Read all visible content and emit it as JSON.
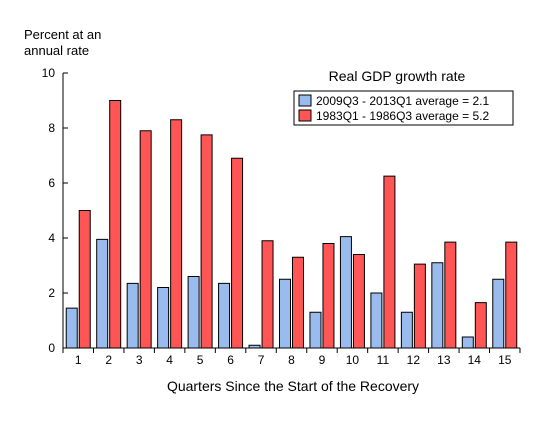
{
  "chart_data": {
    "type": "bar",
    "title": "Real GDP growth rate",
    "ylabel_lines": [
      "Percent at an",
      "annual rate"
    ],
    "xlabel": "Quarters Since the Start of the Recovery",
    "categories": [
      "1",
      "2",
      "3",
      "4",
      "5",
      "6",
      "7",
      "8",
      "9",
      "10",
      "11",
      "12",
      "13",
      "14",
      "15"
    ],
    "ylim": [
      0,
      10
    ],
    "yticks": [
      "0",
      "2",
      "4",
      "6",
      "8",
      "10"
    ],
    "grid": false,
    "legend_position": "top-right",
    "series": [
      {
        "name": "2009Q3 - 2013Q1",
        "legend_label": "2009Q3 - 2013Q1  average =  2.1",
        "color": "#99bbee",
        "values": [
          1.45,
          3.95,
          2.35,
          2.2,
          2.6,
          2.35,
          0.1,
          2.5,
          1.3,
          4.05,
          2.0,
          1.3,
          3.1,
          0.4,
          2.5
        ]
      },
      {
        "name": "1983Q1 - 1986Q3",
        "legend_label": "1983Q1 - 1986Q3  average =  5.2",
        "color": "#ff5555",
        "values": [
          5.0,
          9.0,
          7.9,
          8.3,
          7.75,
          6.9,
          3.9,
          3.3,
          3.8,
          3.4,
          6.25,
          3.05,
          3.85,
          1.65,
          3.85
        ]
      }
    ]
  }
}
